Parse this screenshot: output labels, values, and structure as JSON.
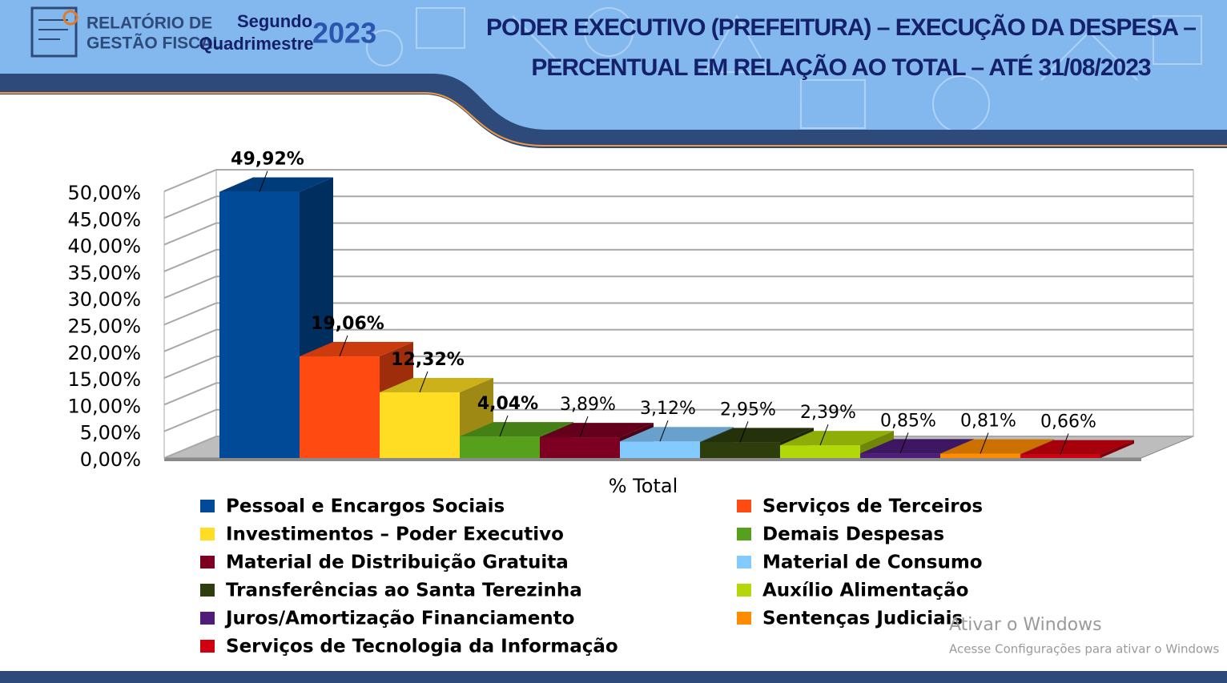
{
  "header": {
    "logo": [
      "RELATÓRIO DE",
      "GESTÃO FISCAL"
    ],
    "period": [
      "Segundo",
      "Quadrimestre"
    ],
    "year": "2023",
    "title_lines": [
      "PODER EXECUTIVO (PREFEITURA) – EXECUÇÃO DA DESPESA –",
      "PERCENTUAL EM RELAÇÃO AO TOTAL – ATÉ 31/08/2023"
    ]
  },
  "chart_data": {
    "type": "bar3d",
    "x_label": "% Total",
    "ylim": [
      0,
      50
    ],
    "yticks": [
      {
        "value": 0,
        "label": "0,00%"
      },
      {
        "value": 5,
        "label": "5,00%"
      },
      {
        "value": 10,
        "label": "10,00%"
      },
      {
        "value": 15,
        "label": "15,00%"
      },
      {
        "value": 20,
        "label": "20,00%"
      },
      {
        "value": 25,
        "label": "25,00%"
      },
      {
        "value": 30,
        "label": "30,00%"
      },
      {
        "value": 35,
        "label": "35,00%"
      },
      {
        "value": 40,
        "label": "40,00%"
      },
      {
        "value": 45,
        "label": "45,00%"
      },
      {
        "value": 50,
        "label": "50,00%"
      }
    ],
    "grid": true,
    "series": [
      {
        "name": "Pessoal e Encargos Sociais",
        "color": "#004a98",
        "values": [
          49.92
        ],
        "value_labels": [
          "49,92%"
        ]
      },
      {
        "name": "Serviços de Terceiros",
        "color": "#ff4a12",
        "values": [
          19.06
        ],
        "value_labels": [
          "19,06%"
        ]
      },
      {
        "name": "Investimentos – Poder Executivo",
        "color": "#ffdd22",
        "values": [
          12.32
        ],
        "value_labels": [
          "12,32%"
        ]
      },
      {
        "name": "Demais Despesas",
        "color": "#56a01c",
        "values": [
          4.04
        ],
        "value_labels": [
          "4,04%"
        ]
      },
      {
        "name": "Material de Distribuição Gratuita",
        "color": "#7d0022",
        "values": [
          3.89
        ],
        "value_labels": [
          "3,89%"
        ]
      },
      {
        "name": "Material de Consumo",
        "color": "#82caff",
        "values": [
          3.12
        ],
        "value_labels": [
          "3,12%"
        ]
      },
      {
        "name": "Transferências ao Santa Terezinha",
        "color": "#2d3d0c",
        "values": [
          2.95
        ],
        "value_labels": [
          "2,95%"
        ]
      },
      {
        "name": "Auxílio Alimentação",
        "color": "#b3d80a",
        "values": [
          2.39
        ],
        "value_labels": [
          "2,39%"
        ]
      },
      {
        "name": "Juros/Amortização Financiamento",
        "color": "#4e1d7a",
        "values": [
          0.85
        ],
        "value_labels": [
          "0,85%"
        ]
      },
      {
        "name": "Sentenças Judiciais",
        "color": "#ff8c00",
        "values": [
          0.81
        ],
        "value_labels": [
          "0,81%"
        ]
      },
      {
        "name": "Serviços de Tecnologia da Informação",
        "color": "#d00010",
        "values": [
          0.66
        ],
        "value_labels": [
          "0,66%"
        ]
      }
    ]
  },
  "watermark": [
    "Ativar o Windows",
    "Acesse Configurações para ativar o Windows"
  ]
}
